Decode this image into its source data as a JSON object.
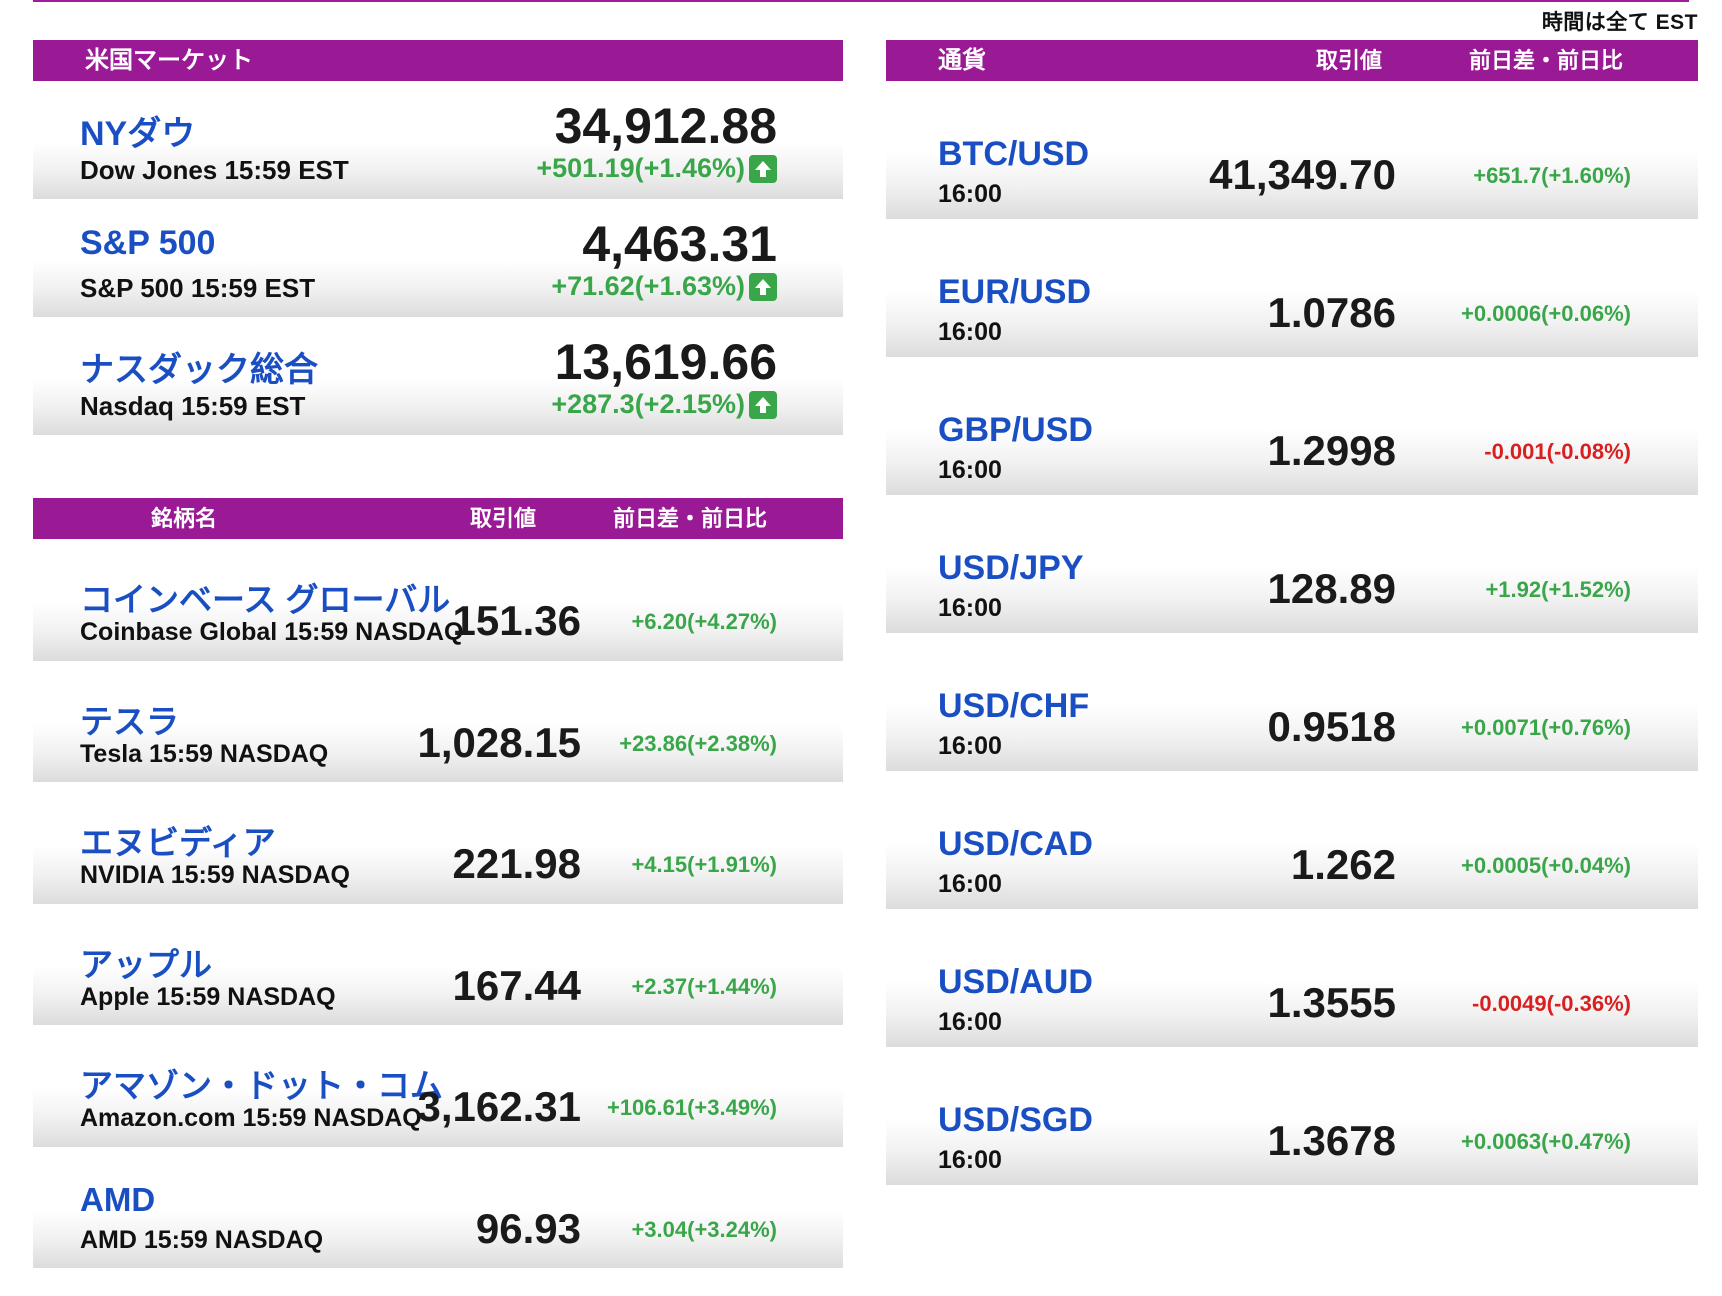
{
  "timezone_note": "時間は全て EST",
  "colors": {
    "header_bg": "#9a1a96",
    "name_blue": "#1a4fc4",
    "up": "#3aa64a",
    "down": "#d92020"
  },
  "us_market": {
    "header": "米国マーケット",
    "indices": [
      {
        "name_jp": "NYダウ",
        "name_en": "Dow Jones 15:59 EST",
        "price": "34,912.88",
        "change": "+501.19(+1.46%)",
        "direction": "up",
        "icon": "arrow-up-icon"
      },
      {
        "name_jp": "S&P 500",
        "name_en": "S&P 500 15:59 EST",
        "price": "4,463.31",
        "change": "+71.62(+1.63%)",
        "direction": "up",
        "icon": "arrow-up-icon"
      },
      {
        "name_jp": "ナスダック総合",
        "name_en": "Nasdaq 15:59 EST",
        "price": "13,619.66",
        "change": "+287.3(+2.15%)",
        "direction": "up",
        "icon": "arrow-up-icon"
      }
    ]
  },
  "stocks": {
    "headers": {
      "name": "銘柄名",
      "price": "取引値",
      "change": "前日差・前日比"
    },
    "items": [
      {
        "name_jp": "コインベース グローバル",
        "name_en": "Coinbase Global 15:59 NASDAQ",
        "price": "151.36",
        "change": "+6.20(+4.27%)",
        "direction": "up"
      },
      {
        "name_jp": "テスラ",
        "name_en": "Tesla 15:59 NASDAQ",
        "price": "1,028.15",
        "change": "+23.86(+2.38%)",
        "direction": "up"
      },
      {
        "name_jp": "エヌビディア",
        "name_en": "NVIDIA 15:59 NASDAQ",
        "price": "221.98",
        "change": "+4.15(+1.91%)",
        "direction": "up"
      },
      {
        "name_jp": "アップル",
        "name_en": "Apple 15:59 NASDAQ",
        "price": "167.44",
        "change": "+2.37(+1.44%)",
        "direction": "up"
      },
      {
        "name_jp": "アマゾン・ドット・コム",
        "name_en": "Amazon.com 15:59 NASDAQ",
        "price": "3,162.31",
        "change": "+106.61(+3.49%)",
        "direction": "up"
      },
      {
        "name_jp": "AMD",
        "name_en": "AMD 15:59 NASDAQ",
        "price": "96.93",
        "change": "+3.04(+3.24%)",
        "direction": "up"
      }
    ]
  },
  "currencies": {
    "headers": {
      "name": "通貨",
      "price": "取引値",
      "change": "前日差・前日比"
    },
    "items": [
      {
        "pair": "BTC/USD",
        "time": "16:00",
        "price": "41,349.70",
        "change": "+651.7(+1.60%)",
        "direction": "up"
      },
      {
        "pair": "EUR/USD",
        "time": "16:00",
        "price": "1.0786",
        "change": "+0.0006(+0.06%)",
        "direction": "up"
      },
      {
        "pair": "GBP/USD",
        "time": "16:00",
        "price": "1.2998",
        "change": "-0.001(-0.08%)",
        "direction": "down"
      },
      {
        "pair": "USD/JPY",
        "time": "16:00",
        "price": "128.89",
        "change": "+1.92(+1.52%)",
        "direction": "up"
      },
      {
        "pair": "USD/CHF",
        "time": "16:00",
        "price": "0.9518",
        "change": "+0.0071(+0.76%)",
        "direction": "up"
      },
      {
        "pair": "USD/CAD",
        "time": "16:00",
        "price": "1.262",
        "change": "+0.0005(+0.04%)",
        "direction": "up"
      },
      {
        "pair": "USD/AUD",
        "time": "16:00",
        "price": "1.3555",
        "change": "-0.0049(-0.36%)",
        "direction": "down"
      },
      {
        "pair": "USD/SGD",
        "time": "16:00",
        "price": "1.3678",
        "change": "+0.0063(+0.47%)",
        "direction": "up"
      }
    ]
  }
}
